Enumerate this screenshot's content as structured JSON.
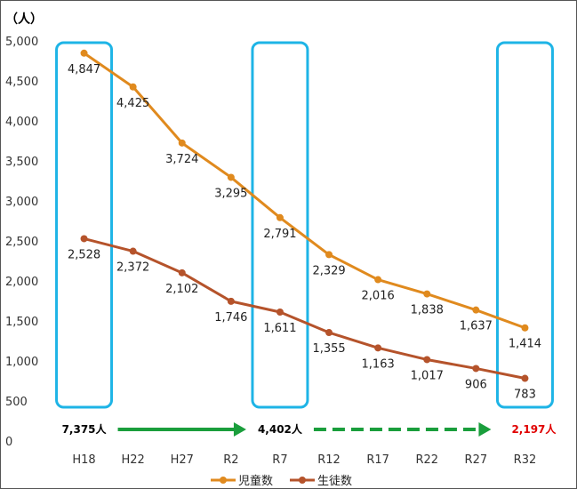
{
  "chart_data": {
    "type": "line",
    "ylabel": "（人）",
    "ylim": [
      0,
      5000
    ],
    "yticks": [
      "0",
      "500",
      "1,000",
      "1,500",
      "2,000",
      "2,500",
      "3,000",
      "3,500",
      "4,000",
      "4,500",
      "5,000"
    ],
    "yticks_values": [
      0,
      500,
      1000,
      1500,
      2000,
      2500,
      3000,
      3500,
      4000,
      4500,
      5000
    ],
    "categories": [
      "H18",
      "H22",
      "H27",
      "R2",
      "R7",
      "R12",
      "R17",
      "R22",
      "R27",
      "R32"
    ],
    "series": [
      {
        "name": "児童数",
        "color": "#E08A1E",
        "values": [
          4847,
          4425,
          3724,
          3295,
          2791,
          2329,
          2016,
          1838,
          1637,
          1414
        ],
        "labels": [
          "4,847",
          "4,425",
          "3,724",
          "3,295",
          "2,791",
          "2,329",
          "2,016",
          "1,838",
          "1,637",
          "1,414"
        ]
      },
      {
        "name": "生徒数",
        "color": "#B5532B",
        "values": [
          2528,
          2372,
          2102,
          1746,
          1611,
          1355,
          1163,
          1017,
          906,
          783
        ],
        "labels": [
          "2,528",
          "2,372",
          "2,102",
          "1,746",
          "1,611",
          "1,355",
          "1,163",
          "1,017",
          "906",
          "783"
        ]
      }
    ],
    "grid": false,
    "legend": "bottom",
    "highlight_boxes": [
      "H18",
      "R7",
      "R32"
    ],
    "highlight_color": "#1EB4E6",
    "totals": [
      {
        "category": "H18",
        "text": "7,375人",
        "color": "#000000"
      },
      {
        "category": "R7",
        "text": "4,402人",
        "color": "#000000"
      },
      {
        "category": "R32",
        "text": "2,197人",
        "color": "#E00000"
      }
    ],
    "arrows": [
      {
        "from": "H18",
        "to": "R7",
        "style": "solid",
        "color": "#1A9E3C"
      },
      {
        "from": "R7",
        "to": "R32",
        "style": "dashed",
        "color": "#1A9E3C"
      }
    ]
  }
}
